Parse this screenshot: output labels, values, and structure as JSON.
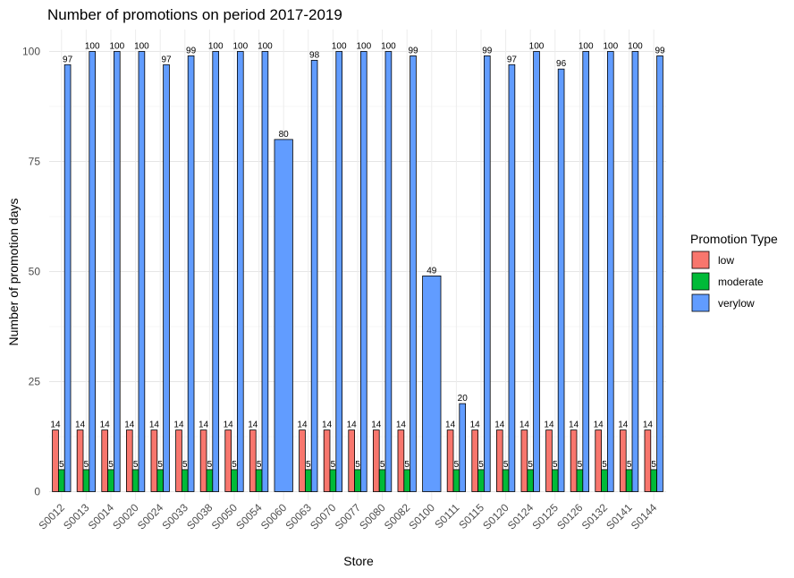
{
  "chart_data": {
    "type": "bar",
    "title": "Number of promotions on period 2017-2019",
    "xlabel": "Store",
    "ylabel": "Number of promotion days",
    "ylim": [
      0,
      100
    ],
    "yticks": [
      0,
      25,
      50,
      75,
      100
    ],
    "grid": true,
    "legend": {
      "title": "Promotion Type",
      "placement": "right"
    },
    "categories": [
      "S0012",
      "S0013",
      "S0014",
      "S0020",
      "S0024",
      "S0033",
      "S0038",
      "S0050",
      "S0054",
      "S0060",
      "S0063",
      "S0070",
      "S0077",
      "S0080",
      "S0082",
      "S0100",
      "S0111",
      "S0115",
      "S0120",
      "S0124",
      "S0125",
      "S0126",
      "S0132",
      "S0141",
      "S0144"
    ],
    "series": [
      {
        "name": "low",
        "color": "#F8766D",
        "values": [
          14,
          14,
          14,
          14,
          14,
          14,
          14,
          14,
          14,
          null,
          14,
          14,
          14,
          14,
          14,
          null,
          14,
          14,
          14,
          14,
          14,
          14,
          14,
          14,
          14
        ]
      },
      {
        "name": "moderate",
        "color": "#00BA38",
        "values": [
          5,
          5,
          5,
          5,
          5,
          5,
          5,
          5,
          5,
          null,
          5,
          5,
          5,
          5,
          5,
          null,
          5,
          5,
          5,
          5,
          5,
          5,
          5,
          5,
          5
        ]
      },
      {
        "name": "verylow",
        "color": "#619CFF",
        "values": [
          97,
          100,
          100,
          100,
          97,
          99,
          100,
          100,
          100,
          80,
          98,
          100,
          100,
          100,
          99,
          49,
          20,
          99,
          97,
          100,
          96,
          100,
          100,
          100,
          99
        ]
      }
    ]
  }
}
